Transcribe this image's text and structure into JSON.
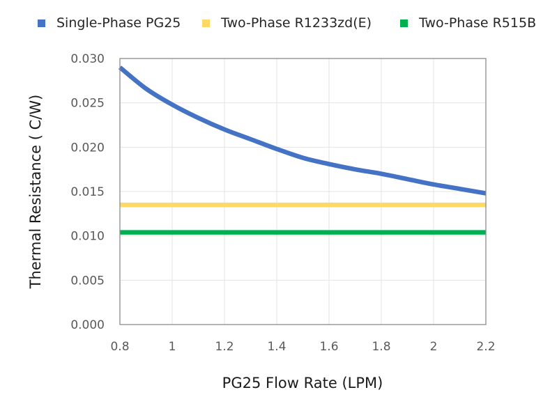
{
  "chart_data": {
    "type": "line",
    "title": "",
    "xlabel": "PG25 Flow Rate (LPM)",
    "ylabel": "Thermal Resistance ( C/W)",
    "xlim": [
      0.8,
      2.2
    ],
    "ylim": [
      0.0,
      0.03
    ],
    "grid": true,
    "legend_position": "top",
    "x_ticks": [
      "0.8",
      "1",
      "1.2",
      "1.4",
      "1.6",
      "1.8",
      "2",
      "2.2"
    ],
    "y_ticks": [
      "0.000",
      "0.005",
      "0.010",
      "0.015",
      "0.020",
      "0.025",
      "0.030"
    ],
    "x": [
      0.8,
      0.9,
      1.0,
      1.1,
      1.2,
      1.3,
      1.4,
      1.5,
      1.6,
      1.7,
      1.8,
      1.9,
      2.0,
      2.1,
      2.2
    ],
    "series": [
      {
        "name": "Single-Phase PG25",
        "color": "#4472C4",
        "values": [
          0.029,
          0.0266,
          0.0248,
          0.0233,
          0.022,
          0.0209,
          0.0198,
          0.0188,
          0.0181,
          0.0175,
          0.017,
          0.0164,
          0.0158,
          0.0153,
          0.0148
        ]
      },
      {
        "name": "Two-Phase R1233zd(E)",
        "color": "#FFD966",
        "values": [
          0.0135,
          0.0135,
          0.0135,
          0.0135,
          0.0135,
          0.0135,
          0.0135,
          0.0135,
          0.0135,
          0.0135,
          0.0135,
          0.0135,
          0.0135,
          0.0135,
          0.0135
        ]
      },
      {
        "name": "Two-Phase R515B",
        "color": "#00B050",
        "values": [
          0.0104,
          0.0104,
          0.0104,
          0.0104,
          0.0104,
          0.0104,
          0.0104,
          0.0104,
          0.0104,
          0.0104,
          0.0104,
          0.0104,
          0.0104,
          0.0104,
          0.0104
        ]
      }
    ]
  }
}
